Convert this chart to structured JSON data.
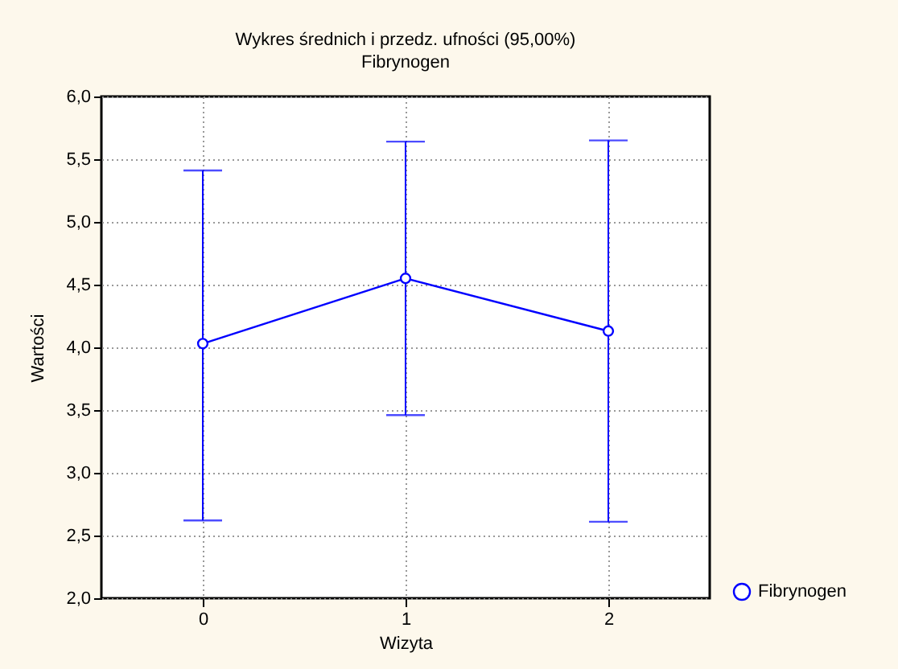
{
  "chart_data": {
    "type": "line",
    "title": "Wykres średnich i przedz. ufności (95,00%)",
    "subtitle": "Fibrynogen",
    "xlabel": "Wizyta",
    "ylabel": "Wartości",
    "categories": [
      "0",
      "1",
      "2"
    ],
    "series": [
      {
        "name": "Fibrynogen",
        "color": "#0000ff",
        "values": [
          4.03,
          4.55,
          4.13
        ],
        "errors": [
          [
            2.62,
            5.41
          ],
          [
            3.46,
            5.64
          ],
          [
            2.61,
            5.65
          ]
        ]
      }
    ],
    "ylim": [
      2.0,
      6.0
    ],
    "yticks": [
      {
        "value": 2.0,
        "label": "2,0"
      },
      {
        "value": 2.5,
        "label": "2,5"
      },
      {
        "value": 3.0,
        "label": "3,0"
      },
      {
        "value": 3.5,
        "label": "3,5"
      },
      {
        "value": 4.0,
        "label": "4,0"
      },
      {
        "value": 4.5,
        "label": "4,5"
      },
      {
        "value": 5.0,
        "label": "5,0"
      },
      {
        "value": 5.5,
        "label": "5,5"
      },
      {
        "value": 6.0,
        "label": "6,0"
      }
    ],
    "grid": true,
    "legend": "bottom right",
    "marker": "circle",
    "line_style": "solid"
  }
}
